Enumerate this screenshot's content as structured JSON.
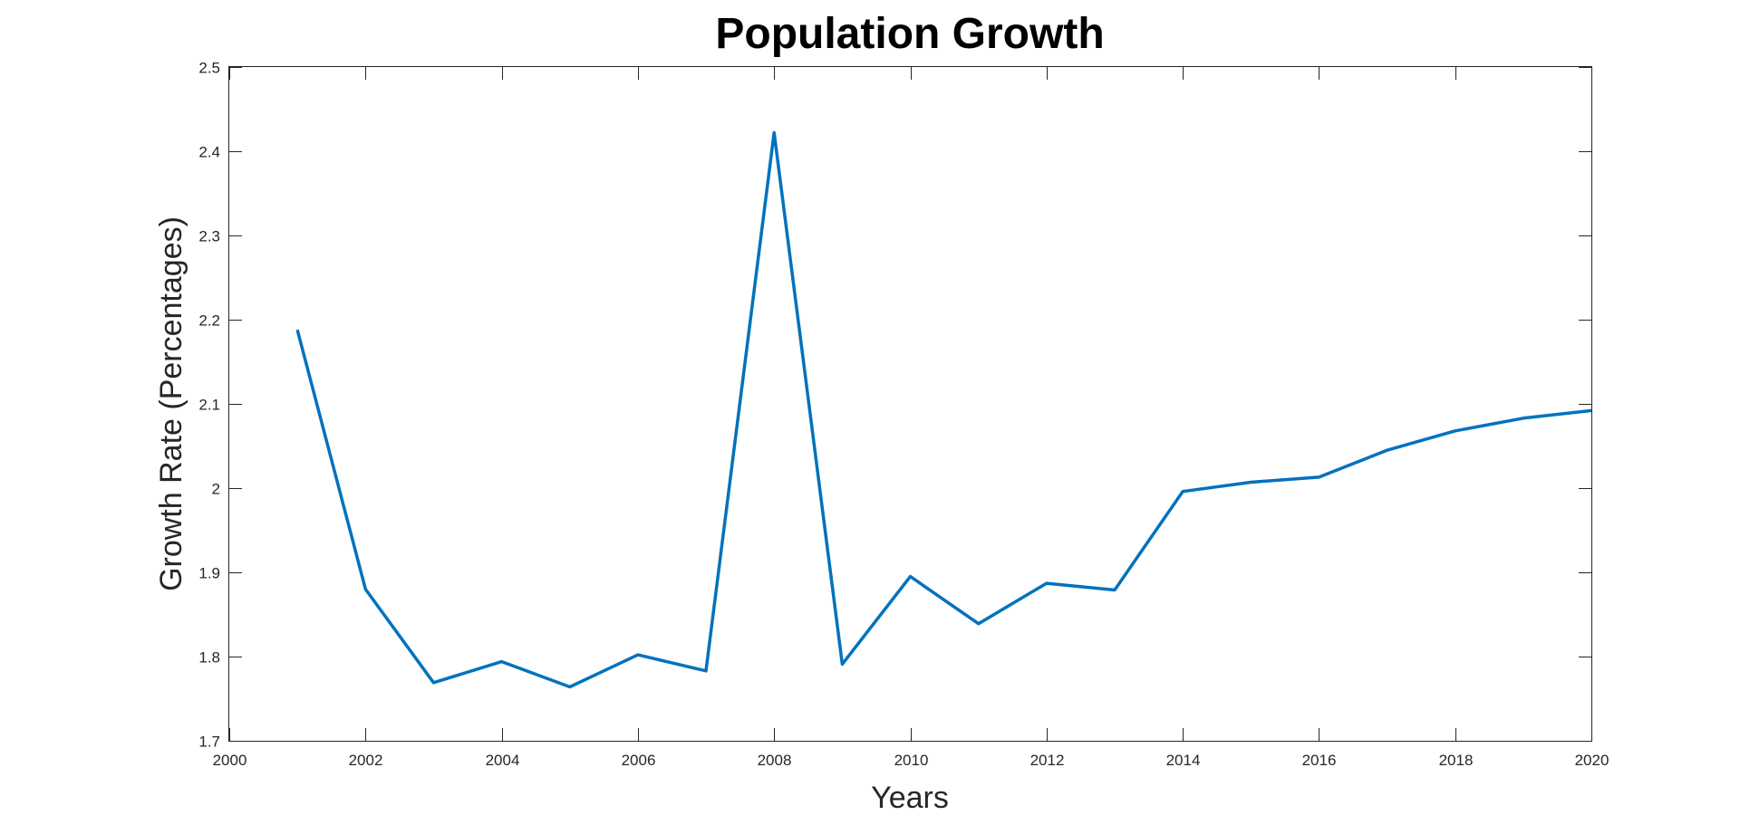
{
  "chart_data": {
    "type": "line",
    "title": "Population Growth",
    "xlabel": "Years",
    "ylabel": "Growth Rate (Percentages)",
    "xlim": [
      2000,
      2020
    ],
    "ylim": [
      1.7,
      2.5
    ],
    "x_ticks": [
      2000,
      2002,
      2004,
      2006,
      2008,
      2010,
      2012,
      2014,
      2016,
      2018,
      2020
    ],
    "y_ticks": [
      1.7,
      1.8,
      1.9,
      2,
      2.1,
      2.2,
      2.3,
      2.4,
      2.5
    ],
    "x_tick_labels": [
      "2000",
      "2002",
      "2004",
      "2006",
      "2008",
      "2010",
      "2012",
      "2014",
      "2016",
      "2018",
      "2020"
    ],
    "y_tick_labels": [
      "1.7",
      "1.8",
      "1.9",
      "2",
      "2.1",
      "2.2",
      "2.3",
      "2.4",
      "2.5"
    ],
    "grid": false,
    "legend": "none",
    "colors": {
      "line": "#0072BD",
      "axis": "#262626",
      "background": "#ffffff"
    },
    "series": [
      {
        "x": [
          2001,
          2002,
          2003,
          2004,
          2005,
          2006,
          2007,
          2008,
          2009,
          2010,
          2011,
          2012,
          2013,
          2014,
          2015,
          2016,
          2017,
          2018,
          2019,
          2020
        ],
        "values": [
          2.188,
          1.88,
          1.769,
          1.794,
          1.764,
          1.802,
          1.783,
          2.422,
          1.791,
          1.895,
          1.839,
          1.887,
          1.879,
          1.996,
          2.007,
          2.013,
          2.045,
          2.068,
          2.083,
          2.092
        ]
      }
    ]
  }
}
